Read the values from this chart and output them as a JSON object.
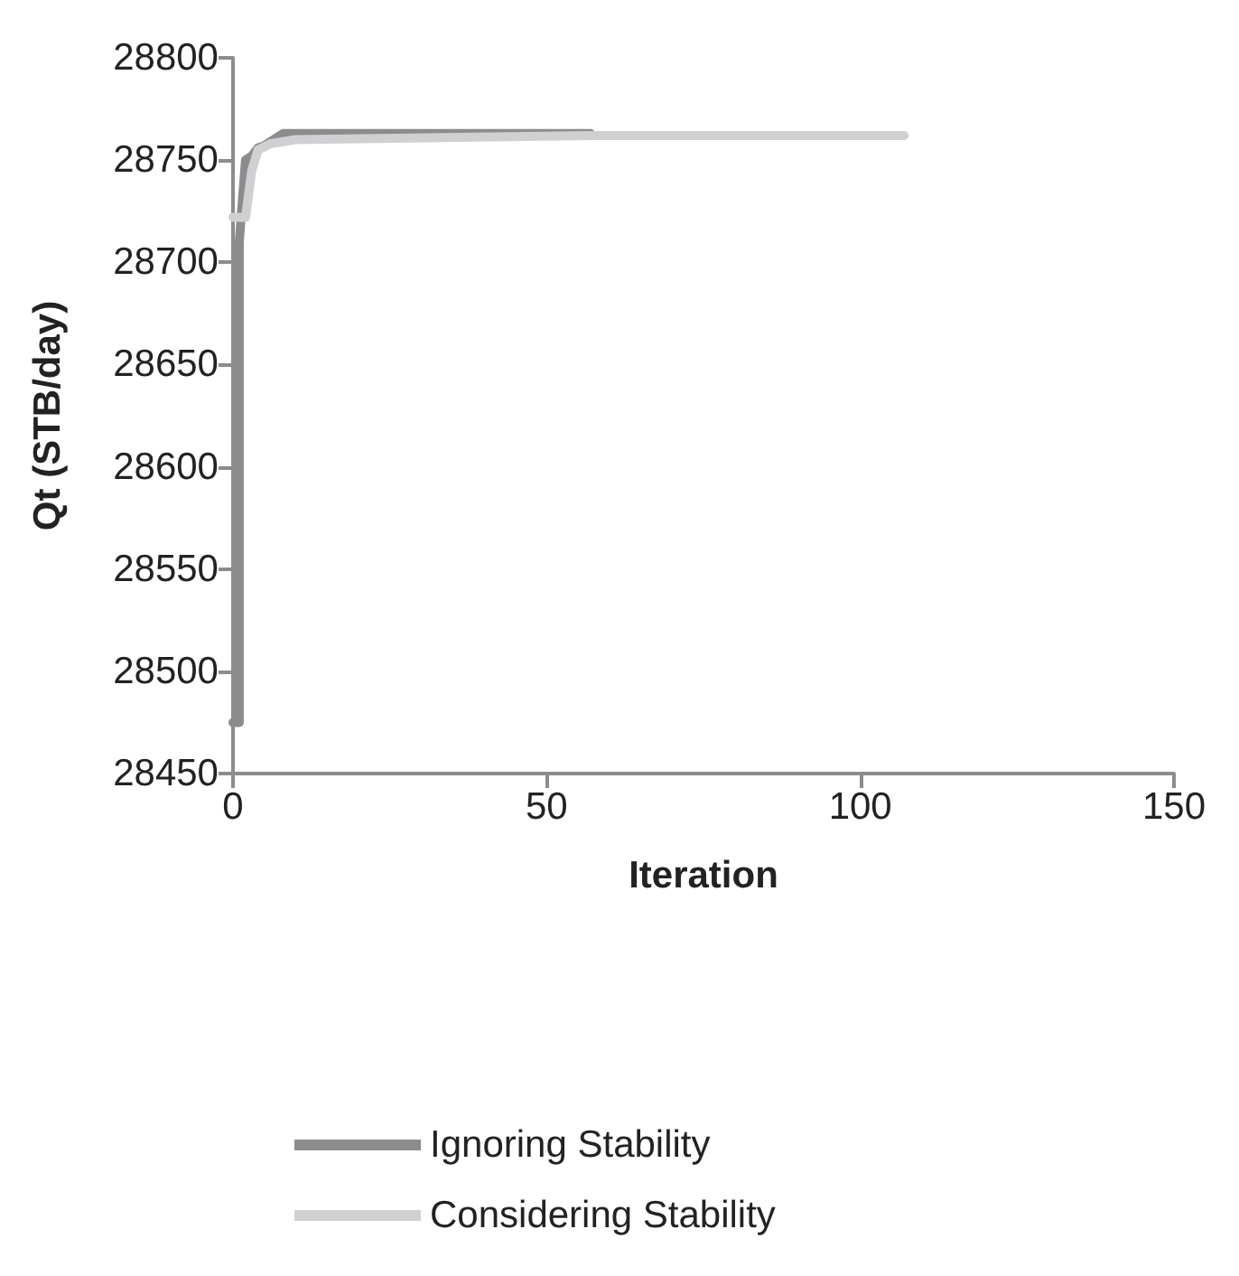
{
  "chart_data": {
    "type": "line",
    "xlabel": "Iteration",
    "ylabel": "Qt (STB/day)",
    "xlim": [
      0,
      150
    ],
    "xticks": [
      0,
      50,
      100,
      150
    ],
    "ylim": [
      28450,
      28800
    ],
    "yticks": [
      28450,
      28500,
      28550,
      28600,
      28650,
      28700,
      28750,
      28800
    ],
    "grid": false,
    "legend": "bottom",
    "marker": "none",
    "line_style": "solid",
    "series": [
      {
        "name": "Ignoring Stability",
        "color": "#8c8c8f",
        "x": [
          0,
          1,
          1,
          2,
          3,
          4,
          5,
          8,
          57
        ],
        "values": [
          28475,
          28475,
          28710,
          28750,
          28752,
          28756,
          28757,
          28763,
          28763
        ]
      },
      {
        "name": "Considering Stability",
        "color": "#d0d0d2",
        "x": [
          0,
          2,
          3,
          4,
          6,
          10,
          57,
          107
        ],
        "values": [
          28722,
          28722,
          28745,
          28755,
          28758,
          28760,
          28762,
          28762
        ]
      }
    ]
  }
}
